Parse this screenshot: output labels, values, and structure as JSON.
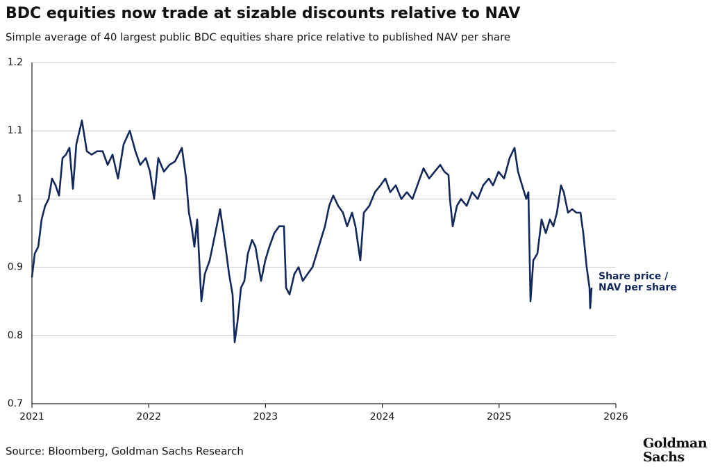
{
  "chart_data": {
    "type": "line",
    "title": "BDC equities now trade at sizable discounts relative to NAV",
    "subtitle": "Simple average of 40 largest public BDC equities share price relative to published NAV per share",
    "source": "Source: Bloomberg, Goldman Sachs Research",
    "logo": "Goldman Sachs",
    "xlim": [
      2021,
      2026
    ],
    "xticks": [
      2021,
      2022,
      2023,
      2024,
      2025,
      2026
    ],
    "ylim": [
      0.7,
      1.2
    ],
    "yticks": [
      0.7,
      0.8,
      0.9,
      1,
      1.1,
      1.2
    ],
    "grid": true,
    "x": [
      2021.0,
      2021.024,
      2021.054,
      2021.083,
      2021.113,
      2021.143,
      2021.172,
      2021.202,
      2021.232,
      2021.262,
      2021.291,
      2021.321,
      2021.351,
      2021.38,
      2021.428,
      2021.47,
      2021.511,
      2021.559,
      2021.606,
      2021.648,
      2021.69,
      2021.737,
      2021.785,
      2021.838,
      2021.886,
      2021.927,
      2021.975,
      2022.011,
      2022.046,
      2022.082,
      2022.13,
      2022.177,
      2022.225,
      2022.284,
      2022.32,
      2022.344,
      2022.367,
      2022.391,
      2022.415,
      2022.451,
      2022.48,
      2022.522,
      2022.57,
      2022.611,
      2022.641,
      2022.665,
      2022.688,
      2022.718,
      2022.736,
      2022.76,
      2022.79,
      2022.819,
      2022.849,
      2022.885,
      2022.914,
      2022.962,
      2022.998,
      2023.033,
      2023.075,
      2023.117,
      2023.158,
      2023.176,
      2023.206,
      2023.247,
      2023.283,
      2023.319,
      2023.36,
      2023.402,
      2023.438,
      2023.473,
      2023.509,
      2023.545,
      2023.58,
      2023.622,
      2023.663,
      2023.699,
      2023.741,
      2023.77,
      2023.812,
      2023.842,
      2023.889,
      2023.937,
      2023.984,
      2024.026,
      2024.068,
      2024.115,
      2024.163,
      2024.21,
      2024.258,
      2024.3,
      2024.353,
      2024.401,
      2024.448,
      2024.496,
      2024.532,
      2024.567,
      2024.579,
      2024.603,
      2024.639,
      2024.674,
      2024.722,
      2024.769,
      2024.817,
      2024.864,
      2024.912,
      2024.948,
      2024.995,
      2025.043,
      2025.09,
      2025.132,
      2025.162,
      2025.197,
      2025.233,
      2025.251,
      2025.269,
      2025.293,
      2025.328,
      2025.364,
      2025.4,
      2025.435,
      2025.465,
      2025.495,
      2025.53,
      2025.554,
      2025.59,
      2025.626,
      2025.661,
      2025.697,
      2025.721,
      2025.75,
      2025.774,
      2025.78,
      2025.792
    ],
    "series": [
      {
        "name": "Share price / NAV per share",
        "color": "#13285a",
        "values": [
          0.885,
          0.92,
          0.93,
          0.97,
          0.99,
          1.0,
          1.03,
          1.02,
          1.005,
          1.06,
          1.065,
          1.075,
          1.015,
          1.08,
          1.115,
          1.07,
          1.065,
          1.07,
          1.07,
          1.05,
          1.065,
          1.03,
          1.08,
          1.1,
          1.07,
          1.05,
          1.06,
          1.04,
          1.0,
          1.06,
          1.04,
          1.05,
          1.055,
          1.075,
          1.03,
          0.98,
          0.96,
          0.93,
          0.97,
          0.85,
          0.89,
          0.91,
          0.95,
          0.985,
          0.95,
          0.92,
          0.89,
          0.86,
          0.79,
          0.82,
          0.87,
          0.88,
          0.92,
          0.94,
          0.93,
          0.88,
          0.91,
          0.93,
          0.95,
          0.96,
          0.96,
          0.87,
          0.86,
          0.89,
          0.9,
          0.88,
          0.89,
          0.9,
          0.92,
          0.94,
          0.96,
          0.99,
          1.005,
          0.99,
          0.98,
          0.96,
          0.98,
          0.96,
          0.91,
          0.98,
          0.99,
          1.01,
          1.02,
          1.03,
          1.01,
          1.02,
          1.0,
          1.01,
          1.0,
          1.02,
          1.045,
          1.03,
          1.04,
          1.05,
          1.04,
          1.035,
          1.0,
          0.96,
          0.99,
          1.0,
          0.99,
          1.01,
          1.0,
          1.02,
          1.03,
          1.02,
          1.04,
          1.03,
          1.06,
          1.075,
          1.04,
          1.02,
          1.0,
          1.01,
          0.85,
          0.91,
          0.92,
          0.97,
          0.95,
          0.97,
          0.96,
          0.98,
          1.02,
          1.01,
          0.98,
          0.985,
          0.98,
          0.98,
          0.95,
          0.9,
          0.87,
          0.84,
          0.87
        ]
      }
    ]
  }
}
